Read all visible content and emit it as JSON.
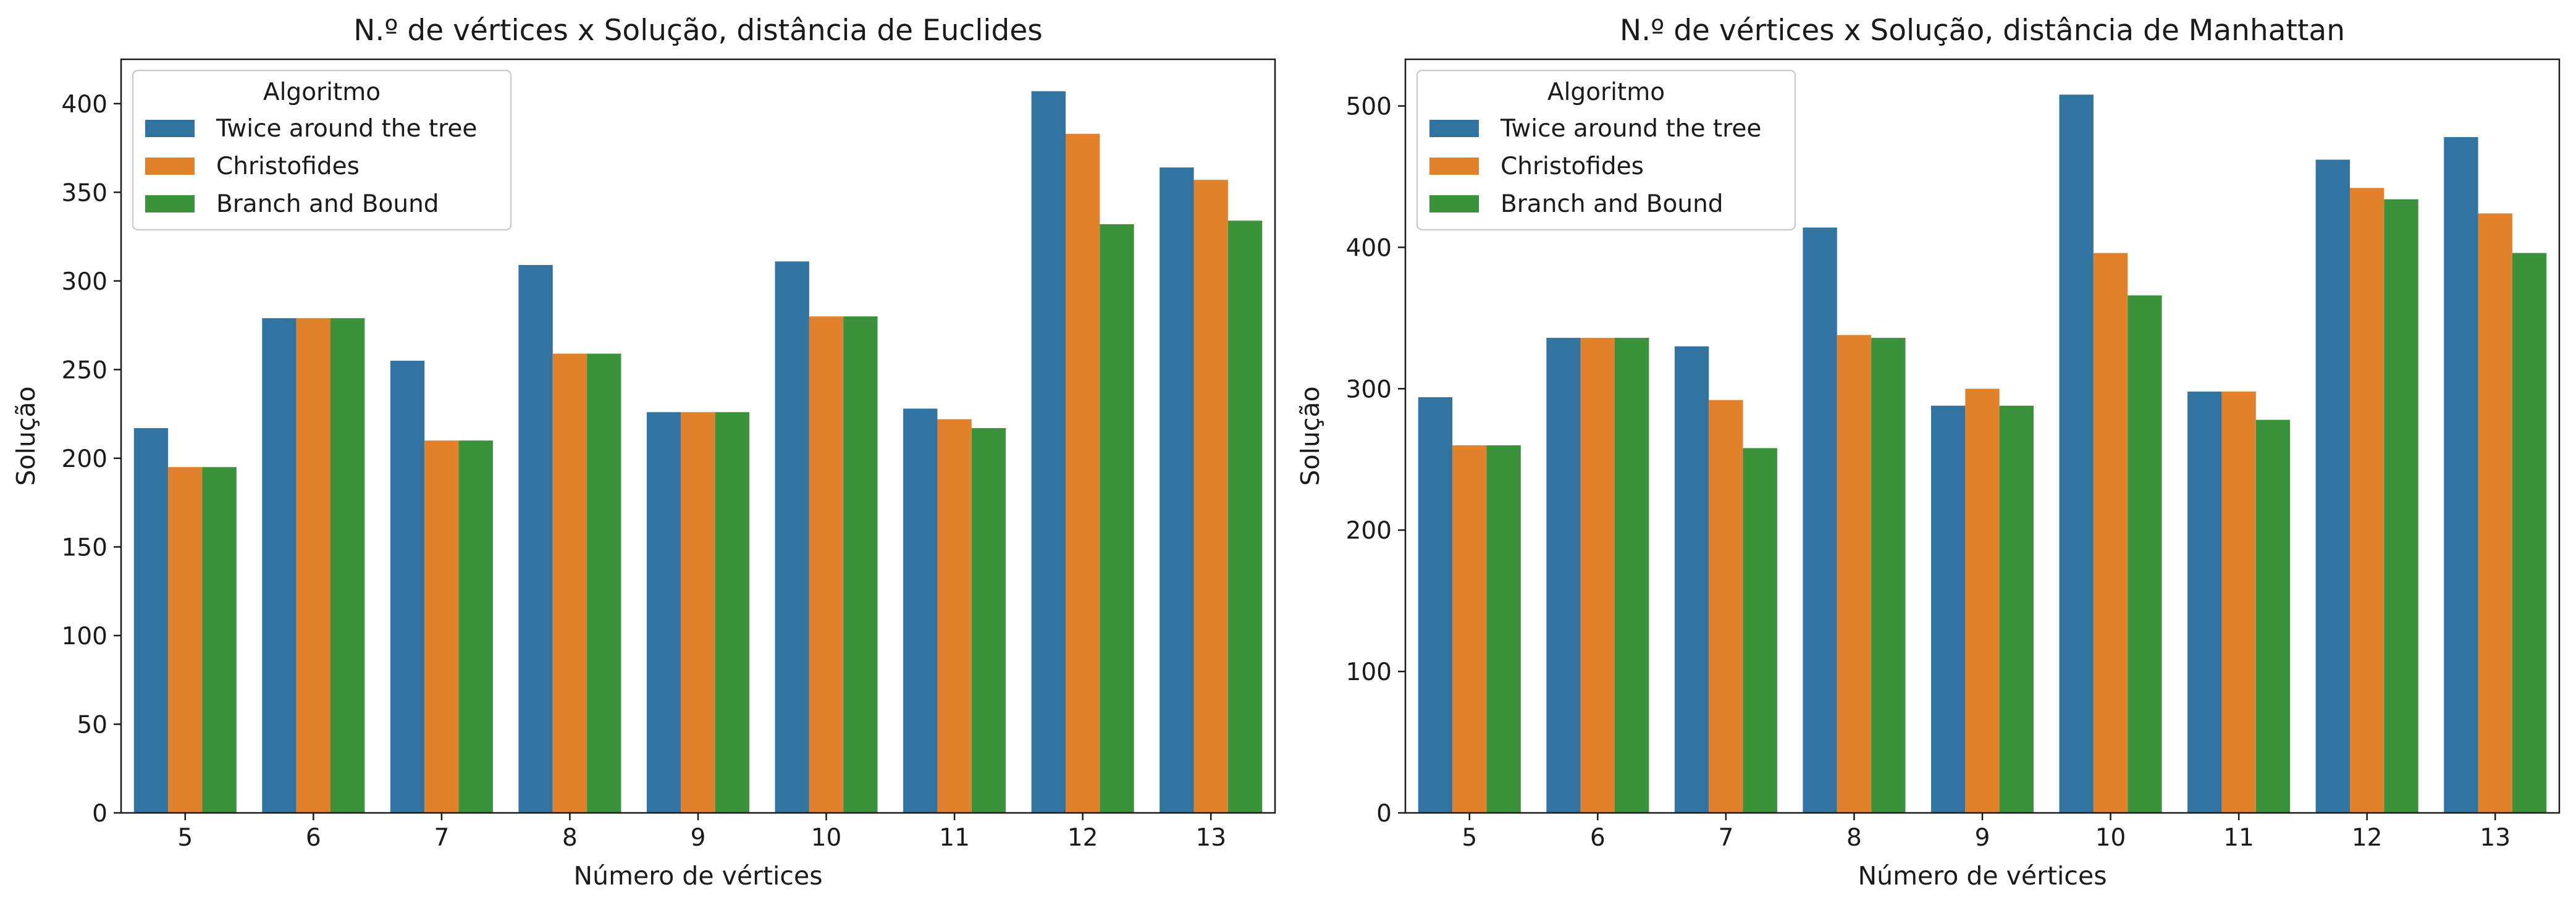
{
  "chart_data": [
    {
      "type": "bar",
      "title": "N.º de vértices x Solução, distância de Euclides",
      "xlabel": "Número de vértices",
      "ylabel": "Solução",
      "categories": [
        "5",
        "6",
        "7",
        "8",
        "9",
        "10",
        "11",
        "12",
        "13"
      ],
      "series": [
        {
          "name": "Twice around the tree",
          "color": "#3274a1",
          "values": [
            217,
            279,
            255,
            309,
            226,
            311,
            228,
            407,
            364
          ]
        },
        {
          "name": "Christofides",
          "color": "#e1812c",
          "values": [
            195,
            279,
            210,
            259,
            226,
            280,
            222,
            383,
            357
          ]
        },
        {
          "name": "Branch and Bound",
          "color": "#3a923a",
          "values": [
            195,
            279,
            210,
            259,
            226,
            280,
            217,
            332,
            334
          ]
        }
      ],
      "ylim": [
        0,
        425
      ],
      "yticks": [
        0,
        50,
        100,
        150,
        200,
        250,
        300,
        350,
        400
      ],
      "legend_title": "Algoritmo",
      "legend_position": "top-left",
      "grid": false
    },
    {
      "type": "bar",
      "title": "N.º de vértices x Solução, distância de Manhattan",
      "xlabel": "Número de vértices",
      "ylabel": "Solução",
      "categories": [
        "5",
        "6",
        "7",
        "8",
        "9",
        "10",
        "11",
        "12",
        "13"
      ],
      "series": [
        {
          "name": "Twice around the tree",
          "color": "#3274a1",
          "values": [
            294,
            336,
            330,
            414,
            288,
            508,
            298,
            462,
            478
          ]
        },
        {
          "name": "Christofides",
          "color": "#e1812c",
          "values": [
            260,
            336,
            292,
            338,
            300,
            396,
            298,
            442,
            424
          ]
        },
        {
          "name": "Branch and Bound",
          "color": "#3a923a",
          "values": [
            260,
            336,
            258,
            336,
            288,
            366,
            278,
            434,
            396
          ]
        }
      ],
      "ylim": [
        0,
        533
      ],
      "yticks": [
        0,
        100,
        200,
        300,
        400,
        500
      ],
      "legend_title": "Algoritmo",
      "legend_position": "top-left",
      "grid": false
    }
  ]
}
